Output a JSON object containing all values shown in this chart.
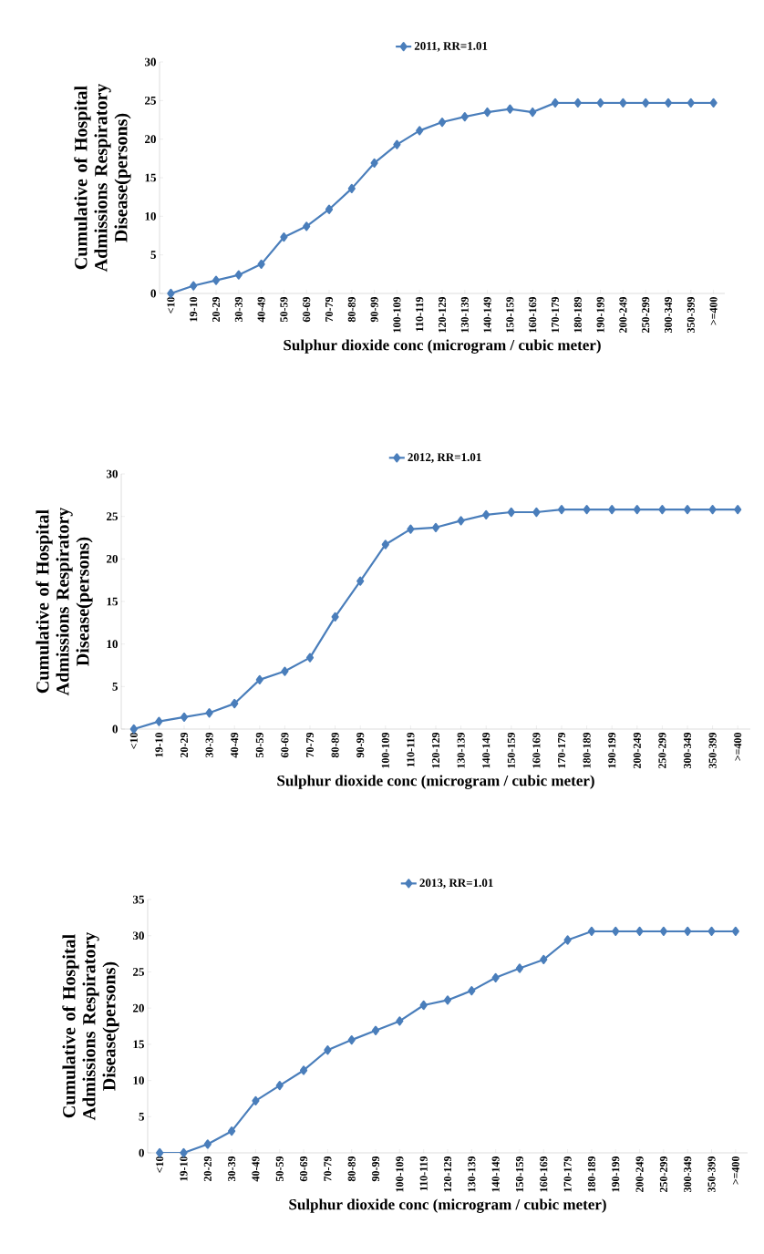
{
  "chart_data": [
    {
      "type": "line",
      "xlabel": "Sulphur dioxide conc (microgram / cubic meter)",
      "ylabel": "Cumulative of Hospital Admissions Respiratory Disease(persons)",
      "categories": [
        "<10",
        "19-10",
        "20-29",
        "30-39",
        "40-49",
        "50-59",
        "60-69",
        "70-79",
        "80-89",
        "90-99",
        "100-109",
        "110-119",
        "120-129",
        "130-139",
        "140-149",
        "150-159",
        "160-169",
        "170-179",
        "180-189",
        "190-199",
        "200-249",
        "250-299",
        "300-349",
        "350-399",
        ">=400"
      ],
      "series": [
        {
          "name": "2011, RR=1.01",
          "color": "#4a7ebb",
          "values": [
            0,
            1.0,
            1.7,
            2.4,
            3.8,
            7.3,
            8.7,
            10.9,
            13.6,
            16.9,
            19.3,
            21.1,
            22.2,
            22.9,
            23.5,
            23.9,
            23.5,
            24.7,
            24.7,
            24.7,
            24.7,
            24.7,
            24.7,
            24.7,
            24.7
          ]
        }
      ],
      "ylim": [
        0,
        30
      ],
      "yticks": [
        0,
        5,
        10,
        15,
        20,
        25,
        30
      ],
      "legend": "top",
      "marker": "diamond"
    },
    {
      "type": "line",
      "xlabel": "Sulphur dioxide  conc (microgram / cubic meter)",
      "ylabel": "Cumulative of Hospital Admissions Respiratory Disease(persons)",
      "categories": [
        "<10",
        "19-10",
        "20-29",
        "30-39",
        "40-49",
        "50-59",
        "60-69",
        "70-79",
        "80-89",
        "90-99",
        "100-109",
        "110-119",
        "120-129",
        "130-139",
        "140-149",
        "150-159",
        "160-169",
        "170-179",
        "180-189",
        "190-199",
        "200-249",
        "250-299",
        "300-349",
        "350-399",
        ">=400"
      ],
      "series": [
        {
          "name": "2012, RR=1.01",
          "color": "#4a7ebb",
          "values": [
            0,
            0.9,
            1.4,
            1.9,
            3.0,
            5.8,
            6.8,
            8.4,
            13.2,
            17.4,
            21.7,
            23.5,
            23.7,
            24.5,
            25.2,
            25.5,
            25.5,
            25.8,
            25.8,
            25.8,
            25.8,
            25.8,
            25.8,
            25.8,
            25.8
          ]
        }
      ],
      "ylim": [
        0,
        30
      ],
      "yticks": [
        0,
        5,
        10,
        15,
        20,
        25,
        30
      ],
      "legend": "top",
      "marker": "diamond"
    },
    {
      "type": "line",
      "xlabel": "Sulphur dioxide conc (microgram / cubic meter)",
      "ylabel": "Cumulative of Hospital Admissions Respiratory Disease(persons)",
      "categories": [
        "<10",
        "19-10",
        "20-29",
        "30-39",
        "40-49",
        "50-59",
        "60-69",
        "70-79",
        "80-89",
        "90-99",
        "100-109",
        "110-119",
        "120-129",
        "130-139",
        "140-149",
        "150-159",
        "160-169",
        "170-179",
        "180-189",
        "190-199",
        "200-249",
        "250-299",
        "300-349",
        "350-399",
        ">=400"
      ],
      "series": [
        {
          "name": "2013, RR=1.01",
          "color": "#4a7ebb",
          "values": [
            0,
            0,
            1.2,
            3.0,
            7.2,
            9.3,
            11.4,
            14.2,
            15.6,
            16.9,
            18.2,
            20.4,
            21.1,
            22.4,
            24.2,
            25.5,
            26.7,
            29.4,
            30.6,
            30.6,
            30.6,
            30.6,
            30.6,
            30.6,
            30.6
          ]
        }
      ],
      "ylim": [
        0,
        35
      ],
      "yticks": [
        0,
        5,
        10,
        15,
        20,
        25,
        30,
        35
      ],
      "legend": "top",
      "marker": "diamond"
    }
  ]
}
